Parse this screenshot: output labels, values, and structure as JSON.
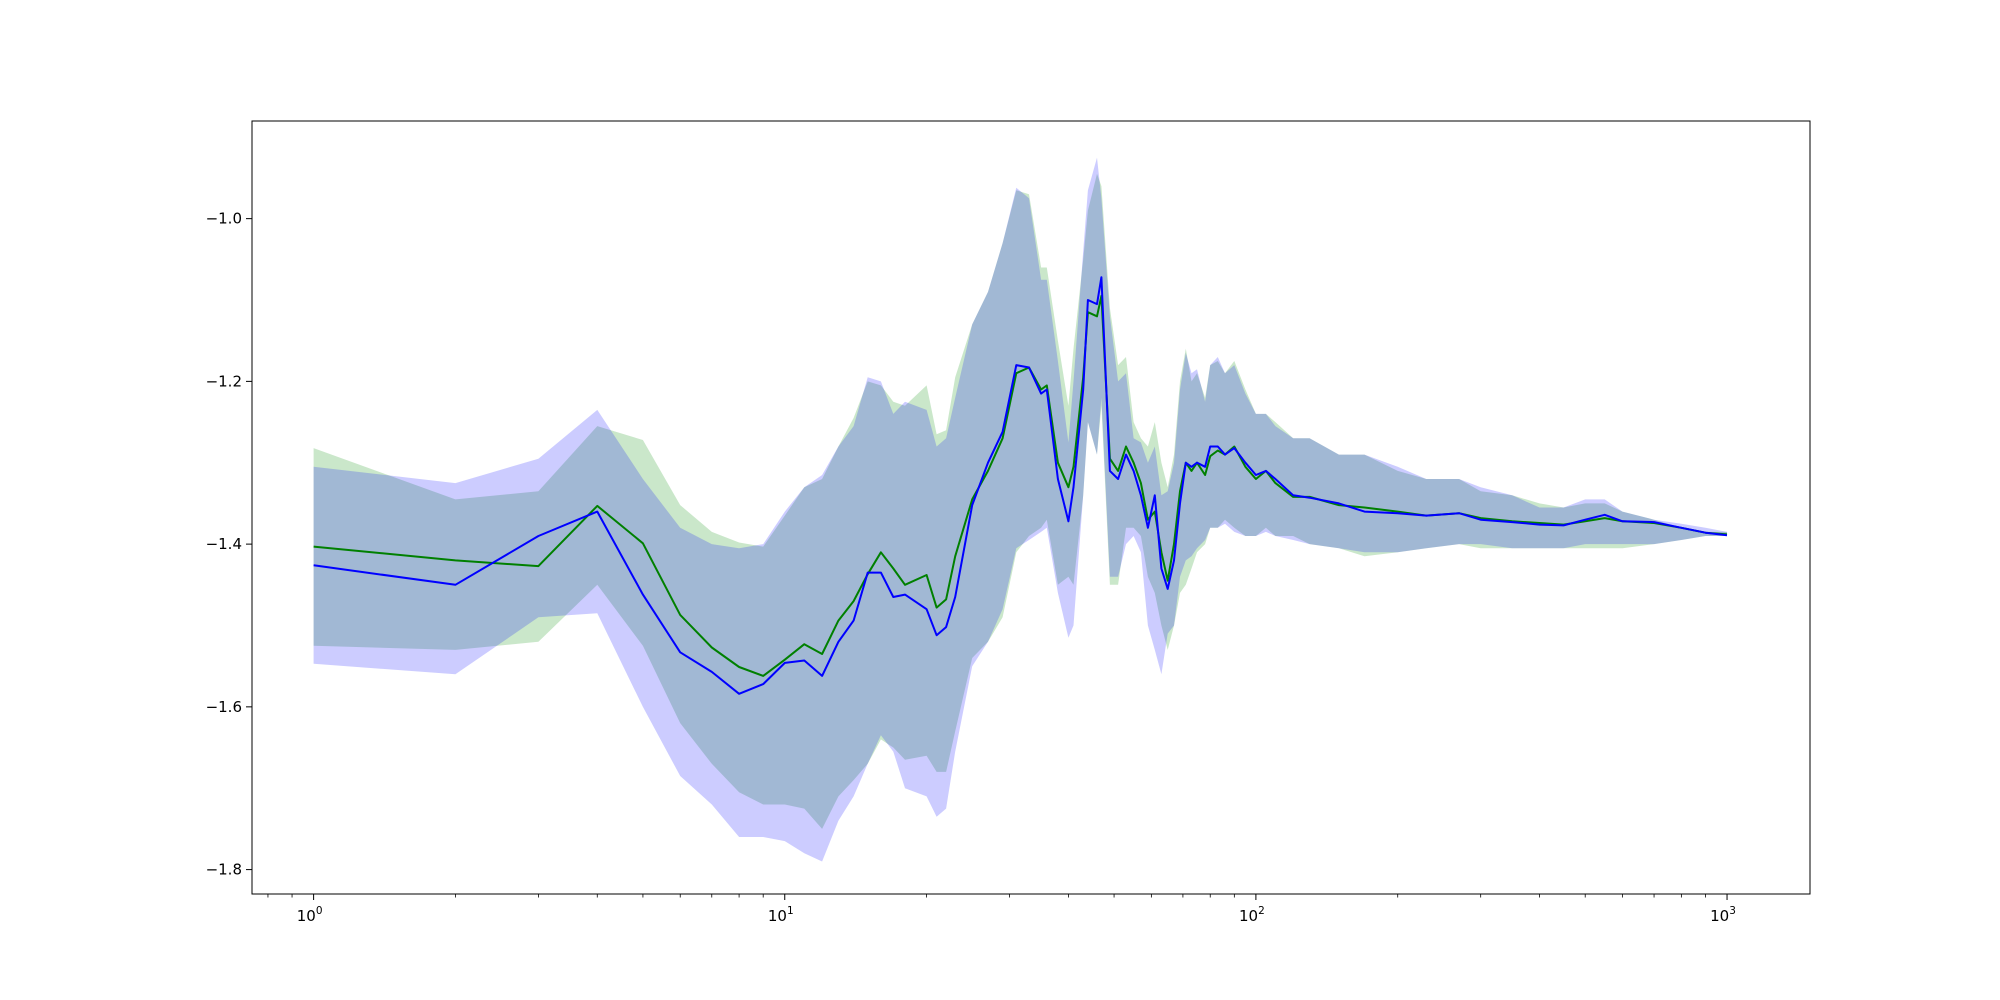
{
  "chart_data": {
    "type": "line",
    "title": "",
    "xlabel": "",
    "ylabel": "",
    "xscale": "log",
    "xlim": [
      0.74,
      1500
    ],
    "ylim": [
      -1.83,
      -0.88
    ],
    "grid": false,
    "legend": "none",
    "xticks": [
      {
        "base": "10",
        "exp": "0",
        "value": 1
      },
      {
        "base": "10",
        "exp": "1",
        "value": 10
      },
      {
        "base": "10",
        "exp": "2",
        "value": 100
      },
      {
        "base": "10",
        "exp": "3",
        "value": 1000
      }
    ],
    "yticks": [
      {
        "label": "−1.8",
        "value": -1.8
      },
      {
        "label": "−1.6",
        "value": -1.6
      },
      {
        "label": "−1.4",
        "value": -1.4
      },
      {
        "label": "−1.2",
        "value": -1.2
      },
      {
        "label": "−1.0",
        "value": -1.0
      }
    ],
    "series": [
      {
        "color": "#008000",
        "band_color": "#2ca02c",
        "x": [
          1,
          2,
          3,
          4,
          5,
          6,
          7,
          8,
          9,
          10,
          11,
          12,
          13,
          14,
          15,
          16,
          17,
          18,
          20,
          21,
          22,
          23,
          25,
          27,
          29,
          31,
          33,
          35,
          36,
          38,
          40,
          41,
          43,
          44,
          46,
          47,
          49,
          51,
          53,
          55,
          57,
          59,
          61,
          63,
          65,
          67,
          69,
          71,
          73,
          75,
          78,
          80,
          83,
          86,
          90,
          95,
          100,
          105,
          110,
          120,
          130,
          150,
          170,
          200,
          230,
          270,
          300,
          350,
          400,
          450,
          500,
          550,
          600,
          700,
          800,
          900,
          1000
        ],
        "y": [
          -1.403,
          -1.42,
          -1.427,
          -1.353,
          -1.399,
          -1.487,
          -1.527,
          -1.551,
          -1.562,
          -1.542,
          -1.523,
          -1.535,
          -1.494,
          -1.47,
          -1.437,
          -1.41,
          -1.43,
          -1.45,
          -1.438,
          -1.478,
          -1.468,
          -1.415,
          -1.345,
          -1.31,
          -1.27,
          -1.19,
          -1.183,
          -1.21,
          -1.205,
          -1.3,
          -1.33,
          -1.305,
          -1.195,
          -1.115,
          -1.12,
          -1.095,
          -1.295,
          -1.31,
          -1.28,
          -1.3,
          -1.325,
          -1.37,
          -1.36,
          -1.41,
          -1.445,
          -1.4,
          -1.335,
          -1.3,
          -1.31,
          -1.3,
          -1.315,
          -1.292,
          -1.285,
          -1.29,
          -1.28,
          -1.305,
          -1.32,
          -1.31,
          -1.325,
          -1.342,
          -1.342,
          -1.352,
          -1.355,
          -1.36,
          -1.365,
          -1.362,
          -1.368,
          -1.372,
          -1.374,
          -1.376,
          -1.372,
          -1.368,
          -1.372,
          -1.374,
          -1.38,
          -1.386,
          -1.388
        ],
        "upper": [
          -1.282,
          -1.345,
          -1.335,
          -1.255,
          -1.272,
          -1.352,
          -1.385,
          -1.398,
          -1.403,
          -1.365,
          -1.33,
          -1.32,
          -1.28,
          -1.245,
          -1.2,
          -1.205,
          -1.225,
          -1.23,
          -1.205,
          -1.265,
          -1.26,
          -1.195,
          -1.13,
          -1.09,
          -1.03,
          -0.965,
          -0.97,
          -1.06,
          -1.06,
          -1.15,
          -1.23,
          -1.16,
          -1.05,
          -0.99,
          -0.945,
          -0.96,
          -1.11,
          -1.18,
          -1.17,
          -1.25,
          -1.27,
          -1.28,
          -1.25,
          -1.3,
          -1.33,
          -1.29,
          -1.2,
          -1.16,
          -1.2,
          -1.19,
          -1.22,
          -1.18,
          -1.175,
          -1.19,
          -1.175,
          -1.21,
          -1.24,
          -1.24,
          -1.25,
          -1.27,
          -1.27,
          -1.29,
          -1.29,
          -1.31,
          -1.32,
          -1.32,
          -1.335,
          -1.34,
          -1.35,
          -1.355,
          -1.35,
          -1.35,
          -1.36,
          -1.37,
          -1.38,
          -1.385,
          -1.385
        ],
        "lower": [
          -1.525,
          -1.53,
          -1.52,
          -1.45,
          -1.525,
          -1.62,
          -1.67,
          -1.705,
          -1.72,
          -1.72,
          -1.725,
          -1.75,
          -1.71,
          -1.69,
          -1.67,
          -1.64,
          -1.65,
          -1.665,
          -1.66,
          -1.68,
          -1.68,
          -1.63,
          -1.54,
          -1.52,
          -1.49,
          -1.41,
          -1.39,
          -1.38,
          -1.37,
          -1.45,
          -1.44,
          -1.45,
          -1.34,
          -1.25,
          -1.29,
          -1.23,
          -1.45,
          -1.45,
          -1.38,
          -1.38,
          -1.39,
          -1.44,
          -1.46,
          -1.5,
          -1.53,
          -1.5,
          -1.46,
          -1.45,
          -1.43,
          -1.41,
          -1.4,
          -1.38,
          -1.38,
          -1.37,
          -1.38,
          -1.39,
          -1.39,
          -1.38,
          -1.39,
          -1.39,
          -1.4,
          -1.405,
          -1.415,
          -1.41,
          -1.405,
          -1.4,
          -1.405,
          -1.405,
          -1.405,
          -1.405,
          -1.405,
          -1.405,
          -1.405,
          -1.4,
          -1.395,
          -1.39,
          -1.39
        ]
      },
      {
        "color": "#0000ff",
        "band_color": "#0000ff",
        "x": [
          1,
          2,
          3,
          4,
          5,
          6,
          7,
          8,
          9,
          10,
          11,
          12,
          13,
          14,
          15,
          16,
          17,
          18,
          20,
          21,
          22,
          23,
          25,
          27,
          29,
          31,
          33,
          35,
          36,
          38,
          40,
          41,
          43,
          44,
          46,
          47,
          49,
          51,
          53,
          55,
          57,
          59,
          61,
          63,
          65,
          67,
          69,
          71,
          73,
          75,
          78,
          80,
          83,
          86,
          90,
          95,
          100,
          105,
          110,
          120,
          130,
          150,
          170,
          200,
          230,
          270,
          300,
          350,
          400,
          450,
          500,
          550,
          600,
          700,
          800,
          900,
          1000
        ],
        "y": [
          -1.426,
          -1.45,
          -1.39,
          -1.36,
          -1.462,
          -1.533,
          -1.557,
          -1.584,
          -1.572,
          -1.546,
          -1.543,
          -1.562,
          -1.52,
          -1.494,
          -1.435,
          -1.435,
          -1.465,
          -1.462,
          -1.48,
          -1.512,
          -1.502,
          -1.465,
          -1.352,
          -1.3,
          -1.262,
          -1.18,
          -1.183,
          -1.215,
          -1.21,
          -1.32,
          -1.372,
          -1.33,
          -1.21,
          -1.1,
          -1.105,
          -1.072,
          -1.31,
          -1.32,
          -1.29,
          -1.31,
          -1.34,
          -1.38,
          -1.34,
          -1.43,
          -1.455,
          -1.42,
          -1.35,
          -1.3,
          -1.305,
          -1.3,
          -1.305,
          -1.28,
          -1.28,
          -1.29,
          -1.282,
          -1.3,
          -1.315,
          -1.31,
          -1.32,
          -1.34,
          -1.343,
          -1.35,
          -1.36,
          -1.362,
          -1.365,
          -1.362,
          -1.37,
          -1.373,
          -1.376,
          -1.377,
          -1.37,
          -1.364,
          -1.372,
          -1.373,
          -1.38,
          -1.386,
          -1.389
        ],
        "upper": [
          -1.305,
          -1.325,
          -1.295,
          -1.235,
          -1.32,
          -1.38,
          -1.4,
          -1.405,
          -1.4,
          -1.36,
          -1.33,
          -1.315,
          -1.28,
          -1.255,
          -1.195,
          -1.2,
          -1.24,
          -1.225,
          -1.235,
          -1.28,
          -1.27,
          -1.22,
          -1.13,
          -1.09,
          -1.03,
          -0.962,
          -0.975,
          -1.075,
          -1.075,
          -1.175,
          -1.275,
          -1.2,
          -1.04,
          -0.965,
          -0.925,
          -0.975,
          -1.12,
          -1.2,
          -1.19,
          -1.27,
          -1.275,
          -1.3,
          -1.28,
          -1.34,
          -1.335,
          -1.3,
          -1.21,
          -1.165,
          -1.19,
          -1.185,
          -1.225,
          -1.18,
          -1.17,
          -1.19,
          -1.18,
          -1.215,
          -1.24,
          -1.24,
          -1.255,
          -1.27,
          -1.27,
          -1.29,
          -1.29,
          -1.305,
          -1.32,
          -1.32,
          -1.33,
          -1.34,
          -1.355,
          -1.355,
          -1.345,
          -1.345,
          -1.36,
          -1.37,
          -1.375,
          -1.38,
          -1.385
        ],
        "lower": [
          -1.547,
          -1.56,
          -1.49,
          -1.485,
          -1.6,
          -1.685,
          -1.72,
          -1.76,
          -1.76,
          -1.765,
          -1.78,
          -1.79,
          -1.74,
          -1.71,
          -1.67,
          -1.635,
          -1.655,
          -1.7,
          -1.71,
          -1.735,
          -1.725,
          -1.655,
          -1.55,
          -1.52,
          -1.48,
          -1.405,
          -1.395,
          -1.385,
          -1.38,
          -1.46,
          -1.515,
          -1.5,
          -1.34,
          -1.25,
          -1.29,
          -1.22,
          -1.44,
          -1.44,
          -1.4,
          -1.39,
          -1.41,
          -1.5,
          -1.53,
          -1.56,
          -1.51,
          -1.5,
          -1.44,
          -1.42,
          -1.415,
          -1.405,
          -1.395,
          -1.38,
          -1.38,
          -1.375,
          -1.385,
          -1.39,
          -1.39,
          -1.385,
          -1.39,
          -1.395,
          -1.4,
          -1.405,
          -1.41,
          -1.41,
          -1.405,
          -1.4,
          -1.4,
          -1.405,
          -1.405,
          -1.405,
          -1.4,
          -1.4,
          -1.4,
          -1.4,
          -1.395,
          -1.39,
          -1.39
        ]
      }
    ]
  }
}
